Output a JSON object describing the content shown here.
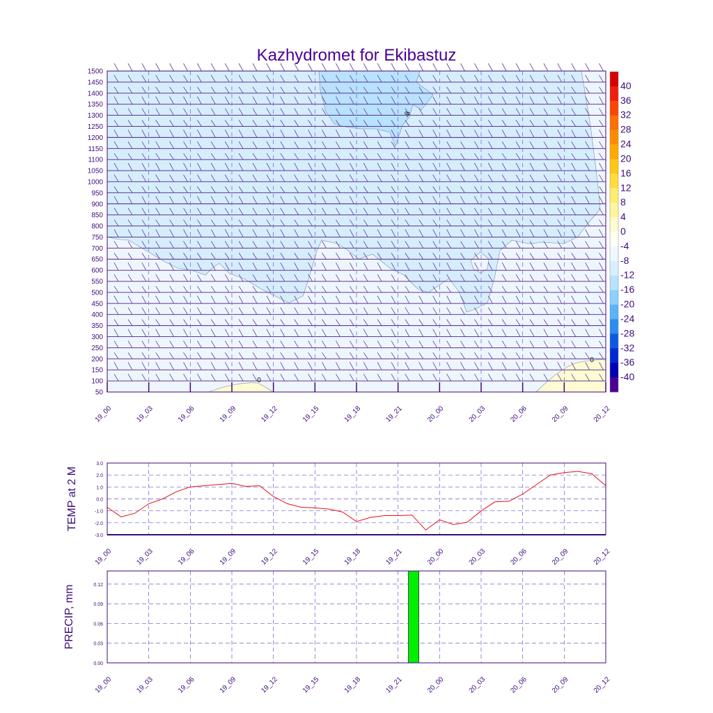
{
  "title": "Kazhydromet for Ekibastuz",
  "colors": {
    "text": "#3d0a7a",
    "frame": "#3d0a7a",
    "grid": "#6a5acd",
    "temp_line": "#e81010",
    "precip_bar": "#00ee00",
    "bar_edge": "#222222"
  },
  "time_labels": [
    "19_00",
    "19_03",
    "19_06",
    "19_09",
    "19_12",
    "19_15",
    "19_18",
    "19_21",
    "20_00",
    "20_03",
    "20_06",
    "20_09",
    "20_12"
  ],
  "chart_data": [
    {
      "type": "heatmap",
      "name": "cross-section",
      "x_labels": [
        "19_00",
        "19_03",
        "19_06",
        "19_09",
        "19_12",
        "19_15",
        "19_18",
        "19_21",
        "20_00",
        "20_03",
        "20_06",
        "20_09",
        "20_12"
      ],
      "y_ticks": [
        50,
        100,
        150,
        200,
        250,
        300,
        350,
        400,
        450,
        500,
        550,
        600,
        650,
        700,
        750,
        800,
        850,
        900,
        950,
        1000,
        1050,
        1100,
        1150,
        1200,
        1250,
        1300,
        1350,
        1400,
        1450,
        1500
      ],
      "ylim": [
        50,
        1500
      ],
      "colorbar_labels": [
        "40",
        "36",
        "32",
        "28",
        "24",
        "20",
        "16",
        "12",
        "8",
        "4",
        "0",
        "-4",
        "-8",
        "-12",
        "-16",
        "-20",
        "-24",
        "-28",
        "-32",
        "-36",
        "-40"
      ],
      "colorbar_colors": [
        "#d70000",
        "#f01e0a",
        "#fa4600",
        "#ff6e00",
        "#ff8c00",
        "#ffaa00",
        "#ffc814",
        "#ffdc3c",
        "#ffee6e",
        "#fff59e",
        "#fffad2",
        "#fffff4",
        "#f0f8ff",
        "#d8efff",
        "#b8e2fd",
        "#8cd0fc",
        "#5ab4f8",
        "#2c8cf0",
        "#0a5ae6",
        "#0028d2",
        "#0000b4",
        "#4b0096"
      ],
      "contour_labels": [
        "-8",
        "0",
        "0"
      ],
      "region_colors": {
        "base": "#eef6fd",
        "cold": "#d6eefc",
        "colder": "#b8e2fd",
        "warm": "#fdfbd2"
      }
    },
    {
      "type": "line",
      "ylabel": "TEMP at 2 M",
      "ylim": [
        -3.0,
        3.0
      ],
      "y_ticks": [
        "-3.0",
        "-2.0",
        "-1.0",
        "0.0",
        "1.0",
        "2.0",
        "3.0"
      ],
      "x": [
        0,
        1,
        2,
        3,
        4,
        5,
        6,
        7,
        8,
        9,
        10,
        11,
        12,
        13,
        14,
        15,
        16,
        17,
        18,
        19,
        20,
        21,
        22,
        23,
        24,
        25,
        26,
        27,
        28,
        29,
        30,
        31,
        32,
        33,
        34,
        35,
        36
      ],
      "values": [
        -0.7,
        -1.5,
        -1.2,
        -0.4,
        0.0,
        0.6,
        1.0,
        1.1,
        1.2,
        1.3,
        1.05,
        1.1,
        0.2,
        -0.4,
        -0.7,
        -0.75,
        -0.85,
        -1.1,
        -1.9,
        -1.55,
        -1.4,
        -1.4,
        -1.35,
        -2.6,
        -1.75,
        -2.15,
        -1.95,
        -1.0,
        -0.25,
        -0.2,
        0.4,
        1.2,
        2.0,
        2.2,
        2.3,
        2.1,
        1.1
      ]
    },
    {
      "type": "bar",
      "ylabel": "PRECIP, mm",
      "ylim": [
        0.0,
        0.14
      ],
      "y_ticks": [
        "0.00",
        "0.03",
        "0.06",
        "0.09",
        "0.12"
      ],
      "bars": [
        {
          "x": 22,
          "value": 0.14
        }
      ]
    }
  ]
}
